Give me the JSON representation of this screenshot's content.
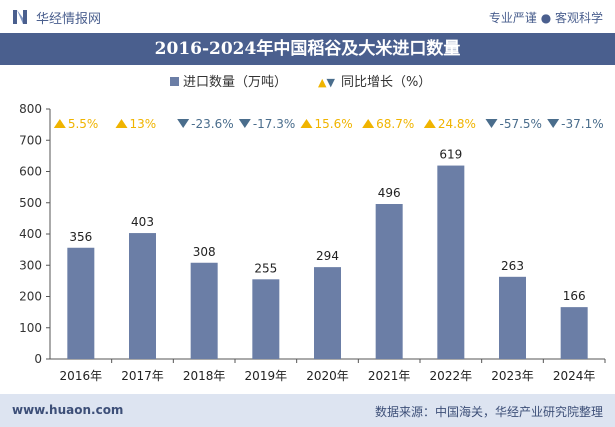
{
  "header": {
    "brand": "华经情报网",
    "slogan": "专业严谨 ● 客观科学"
  },
  "footer": {
    "website": "www.huaon.com",
    "source": "数据来源：中国海关，华经产业研究院整理"
  },
  "colors": {
    "bar": "#6b7ea6",
    "up": "#f0b400",
    "down": "#4a6d8c",
    "title_bg": "#4a5f8e",
    "footer_bg": "#dde4f1"
  },
  "chart_data": {
    "type": "bar",
    "title": "2016-2024年中国稻谷及大米进口数量",
    "categories": [
      "2016年",
      "2017年",
      "2018年",
      "2019年",
      "2020年",
      "2021年",
      "2022年",
      "2023年",
      "2024年"
    ],
    "series": [
      {
        "name": "进口数量（万吨）",
        "values": [
          356,
          403,
          308,
          255,
          294,
          496,
          619,
          263,
          166
        ]
      }
    ],
    "growth": {
      "name": "同比增长（%）",
      "labels": [
        "5.5%",
        "13%",
        "-23.6%",
        "-17.3%",
        "15.6%",
        "68.7%",
        "24.8%",
        "-57.5%",
        "-37.1%"
      ],
      "directions": [
        "up",
        "up",
        "down",
        "down",
        "up",
        "up",
        "up",
        "down",
        "down"
      ]
    },
    "yticks": [
      "0",
      "100",
      "200",
      "300",
      "400",
      "500",
      "600",
      "700",
      "800"
    ],
    "ylim": [
      0,
      800
    ],
    "grid": false,
    "legend_position": "top"
  }
}
